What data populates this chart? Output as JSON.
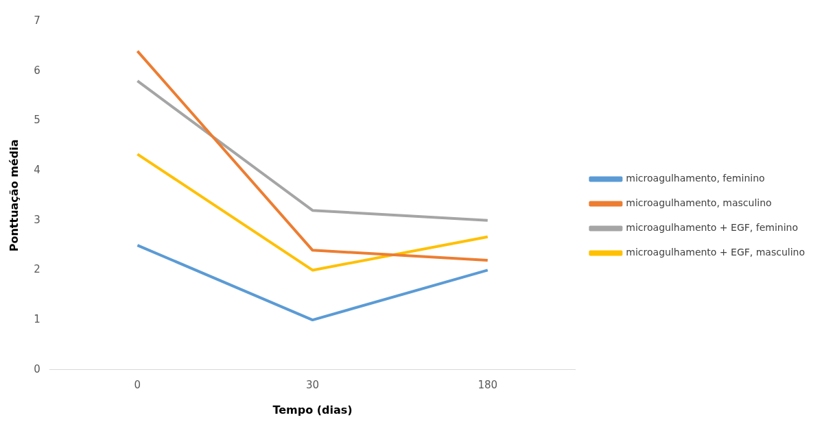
{
  "chart_data": {
    "type": "line",
    "xlabel": "Tempo (dias)",
    "ylabel": "Ponttuação média",
    "categories": [
      "0",
      "30",
      "180"
    ],
    "ylim": [
      0,
      7
    ],
    "yticks": [
      0,
      1,
      2,
      3,
      4,
      5,
      6,
      7
    ],
    "grid": false,
    "legend": "right",
    "marker": "none",
    "line_style": "solid",
    "series": [
      {
        "name": "microagulhamento, feminino",
        "color": "#5b9bd5",
        "values": [
          2.5,
          1.0,
          2.0
        ]
      },
      {
        "name": "microagulhamento, masculino",
        "color": "#ed7d31",
        "values": [
          6.4,
          2.4,
          2.2
        ]
      },
      {
        "name": "microagulhamento + EGF, feminino",
        "color": "#a5a5a5",
        "values": [
          5.8,
          3.2,
          3.0
        ]
      },
      {
        "name": "microagulhamento + EGF, masculino",
        "color": "#ffc000",
        "values": [
          4.33,
          2.0,
          2.67
        ]
      }
    ]
  }
}
